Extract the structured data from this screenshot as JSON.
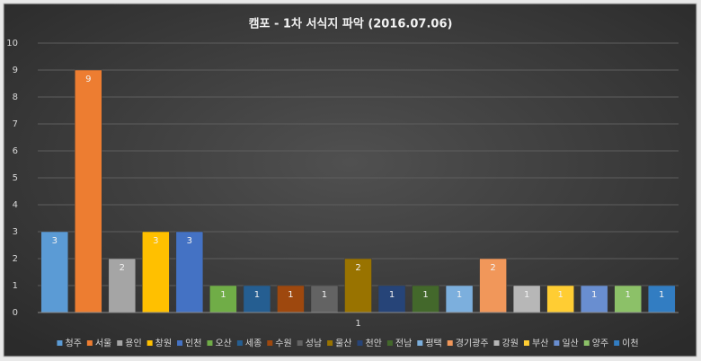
{
  "chart_data": {
    "type": "bar",
    "title": "캠포 - 1차 서식지 파악 (2016.07.06)",
    "categories": [
      "1"
    ],
    "series": [
      {
        "name": "청주",
        "color": "#5b9bd5",
        "values": [
          3
        ]
      },
      {
        "name": "서울",
        "color": "#ed7d31",
        "values": [
          9
        ]
      },
      {
        "name": "용인",
        "color": "#a5a5a5",
        "values": [
          2
        ]
      },
      {
        "name": "창원",
        "color": "#ffc000",
        "values": [
          3
        ]
      },
      {
        "name": "인천",
        "color": "#4472c4",
        "values": [
          3
        ]
      },
      {
        "name": "오산",
        "color": "#70ad47",
        "values": [
          1
        ]
      },
      {
        "name": "세종",
        "color": "#255e91",
        "values": [
          1
        ]
      },
      {
        "name": "수원",
        "color": "#9e480e",
        "values": [
          1
        ]
      },
      {
        "name": "성남",
        "color": "#636363",
        "values": [
          1
        ]
      },
      {
        "name": "울산",
        "color": "#997300",
        "values": [
          2
        ]
      },
      {
        "name": "천안",
        "color": "#264478",
        "values": [
          1
        ]
      },
      {
        "name": "전남",
        "color": "#43682b",
        "values": [
          1
        ]
      },
      {
        "name": "평택",
        "color": "#7cafdd",
        "values": [
          1
        ]
      },
      {
        "name": "경기광주",
        "color": "#f1975a",
        "values": [
          2
        ]
      },
      {
        "name": "강원",
        "color": "#b7b7b7",
        "values": [
          1
        ]
      },
      {
        "name": "부산",
        "color": "#ffcd33",
        "values": [
          1
        ]
      },
      {
        "name": "일산",
        "color": "#698ed0",
        "values": [
          1
        ]
      },
      {
        "name": "양주",
        "color": "#8cc168",
        "values": [
          1
        ]
      },
      {
        "name": "이천",
        "color": "#327dc2",
        "values": [
          1
        ]
      }
    ],
    "ylim": [
      0,
      10
    ],
    "yticks": [
      0,
      1,
      2,
      3,
      4,
      5,
      6,
      7,
      8,
      9,
      10
    ],
    "grid": true,
    "legend": "bottom",
    "data_labels": true
  }
}
